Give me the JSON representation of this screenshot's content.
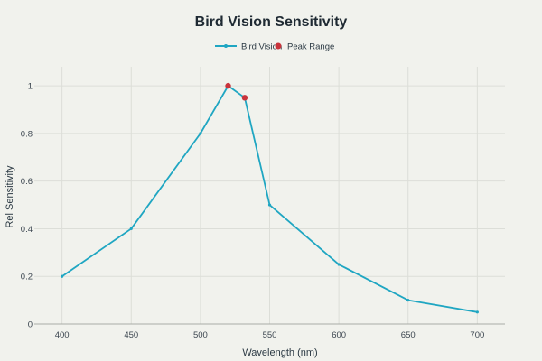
{
  "chart_data": {
    "type": "line",
    "title": "Bird Vision Sensitivity",
    "xlabel": "Wavelength (nm)",
    "ylabel": "Rel Sensitivity",
    "xlim": [
      380,
      720
    ],
    "ylim": [
      0,
      1.08
    ],
    "x_ticks": [
      400,
      450,
      500,
      550,
      600,
      650,
      700
    ],
    "y_ticks": [
      0,
      0.2,
      0.4,
      0.6,
      0.8,
      1
    ],
    "y_tick_labels": [
      "0",
      "0.2",
      "0.4",
      "0.6",
      "0.8",
      "1"
    ],
    "grid": true,
    "legend_position": "top-center",
    "series": [
      {
        "name": "Bird Vision",
        "kind": "line",
        "color": "#1fa6c2",
        "x": [
          400,
          450,
          500,
          520,
          532,
          550,
          600,
          650,
          700
        ],
        "y": [
          0.2,
          0.4,
          0.8,
          1.0,
          0.95,
          0.5,
          0.25,
          0.1,
          0.05
        ]
      },
      {
        "name": "Peak Range",
        "kind": "markers",
        "color": "#c9343c",
        "x": [
          520,
          532
        ],
        "y": [
          1.0,
          0.95
        ]
      }
    ]
  }
}
